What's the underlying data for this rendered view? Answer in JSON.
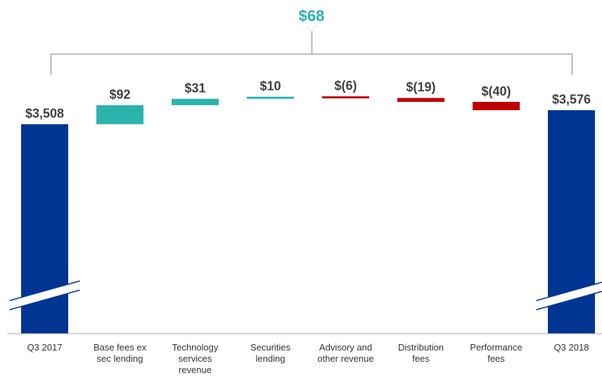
{
  "chart_data": {
    "type": "waterfall",
    "annotation": "$68",
    "categories": [
      "Q3 2017",
      "Base fees ex sec lending",
      "Technology services revenue",
      "Securities lending",
      "Advisory and other revenue",
      "Distribution fees",
      "Performance fees",
      "Q3 2018"
    ],
    "measures": [
      "total",
      "relative",
      "relative",
      "relative",
      "relative",
      "relative",
      "relative",
      "total"
    ],
    "values": [
      3508,
      92,
      31,
      10,
      -6,
      -19,
      -40,
      3576
    ],
    "value_labels": [
      "$3,508",
      "$92",
      "$31",
      "$10",
      "$(6)",
      "$(19)",
      "$(40)",
      "$3,576"
    ],
    "total_color": "#003594",
    "increase_color": "#2bb3ad",
    "decrease_color": "#c00000",
    "ylim": [
      2500,
      3800
    ],
    "axis_break": true
  }
}
